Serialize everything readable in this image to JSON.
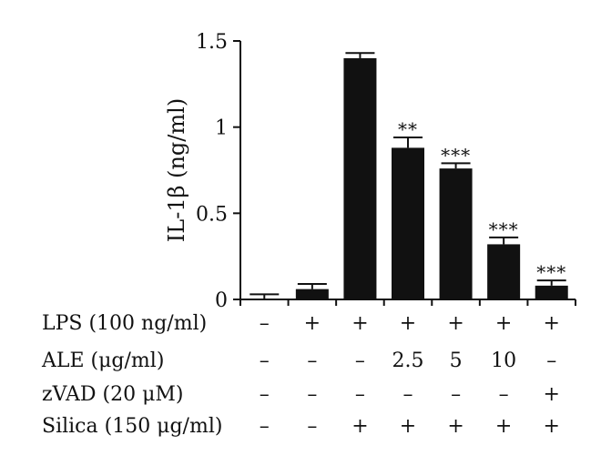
{
  "chart_data": {
    "type": "bar",
    "ylabel": "IL-1β (ng/ml)",
    "ylim": [
      0,
      1.5
    ],
    "yticks": [
      {
        "value": 0,
        "label": "0"
      },
      {
        "value": 0.5,
        "label": "0.5"
      },
      {
        "value": 1,
        "label": "1"
      },
      {
        "value": 1.5,
        "label": "1.5"
      }
    ],
    "values": [
      0.0,
      0.06,
      1.4,
      0.88,
      0.76,
      0.32,
      0.08
    ],
    "errors": [
      0.03,
      0.03,
      0.03,
      0.06,
      0.03,
      0.04,
      0.03
    ],
    "significance": [
      "",
      "",
      "",
      "**",
      "***",
      "***",
      "***"
    ],
    "bar_color": "#111111",
    "conditions": [
      {
        "label": "LPS (100 ng/ml)",
        "values": [
          "–",
          "+",
          "+",
          "+",
          "+",
          "+",
          "+"
        ]
      },
      {
        "label": "ALE (μg/ml)",
        "values": [
          "–",
          "–",
          "–",
          "2.5",
          "5",
          "10",
          "–"
        ]
      },
      {
        "label": "zVAD (20 μM)",
        "values": [
          "–",
          "–",
          "–",
          "–",
          "–",
          "–",
          "+"
        ]
      },
      {
        "label": "Silica (150 μg/ml)",
        "values": [
          "–",
          "–",
          "+",
          "+",
          "+",
          "+",
          "+"
        ]
      }
    ]
  }
}
